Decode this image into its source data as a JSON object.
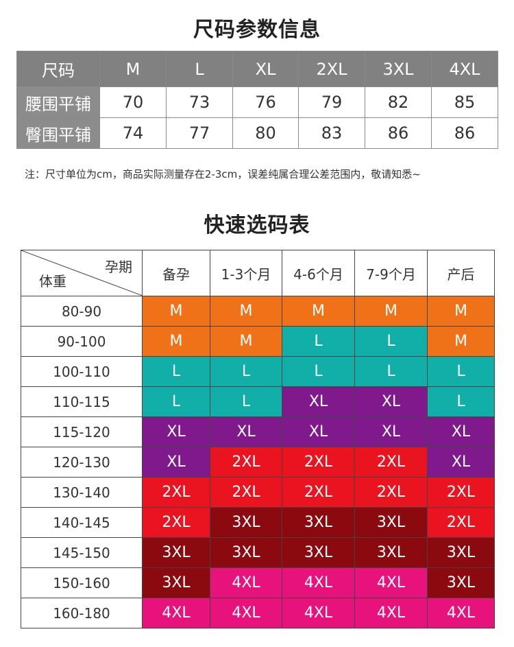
{
  "size_section": {
    "title": "尺码参数信息",
    "header_label": "尺码",
    "sizes": [
      "M",
      "L",
      "XL",
      "2XL",
      "3XL",
      "4XL"
    ],
    "rows": [
      {
        "label": "腰围平铺",
        "values": [
          "70",
          "73",
          "76",
          "79",
          "82",
          "85"
        ]
      },
      {
        "label": "臀围平铺",
        "values": [
          "74",
          "77",
          "80",
          "83",
          "86",
          "86"
        ]
      }
    ],
    "note": "注：尺寸单位为cm，商品实际测量存在2-3cm，误差纯属合理公差范围内，敬请知悉~"
  },
  "quick_section": {
    "title": "快速选码表",
    "corner_top": "孕期",
    "corner_bottom": "体重",
    "periods": [
      "备孕",
      "1-3个月",
      "4-6个月",
      "7-9个月",
      "产后"
    ],
    "rows": [
      {
        "weight": "80-90",
        "sizes": [
          "M",
          "M",
          "M",
          "M",
          "M"
        ]
      },
      {
        "weight": "90-100",
        "sizes": [
          "M",
          "M",
          "L",
          "L",
          "M"
        ]
      },
      {
        "weight": "100-110",
        "sizes": [
          "L",
          "L",
          "L",
          "L",
          "L"
        ]
      },
      {
        "weight": "110-115",
        "sizes": [
          "L",
          "L",
          "XL",
          "XL",
          "L"
        ]
      },
      {
        "weight": "115-120",
        "sizes": [
          "XL",
          "XL",
          "XL",
          "XL",
          "XL"
        ]
      },
      {
        "weight": "120-130",
        "sizes": [
          "XL",
          "2XL",
          "2XL",
          "2XL",
          "XL"
        ]
      },
      {
        "weight": "130-140",
        "sizes": [
          "2XL",
          "2XL",
          "2XL",
          "2XL",
          "2XL"
        ]
      },
      {
        "weight": "140-145",
        "sizes": [
          "2XL",
          "3XL",
          "3XL",
          "3XL",
          "2XL"
        ]
      },
      {
        "weight": "145-150",
        "sizes": [
          "3XL",
          "3XL",
          "3XL",
          "3XL",
          "3XL"
        ]
      },
      {
        "weight": "150-160",
        "sizes": [
          "3XL",
          "4XL",
          "4XL",
          "4XL",
          "3XL"
        ]
      },
      {
        "weight": "160-180",
        "sizes": [
          "4XL",
          "4XL",
          "4XL",
          "4XL",
          "4XL"
        ]
      }
    ],
    "size_colors": {
      "M": "#ef7218",
      "L": "#12aea8",
      "XL": "#801a8c",
      "2XL": "#ea1320",
      "3XL": "#8a0a10",
      "4XL": "#e8127d"
    }
  }
}
